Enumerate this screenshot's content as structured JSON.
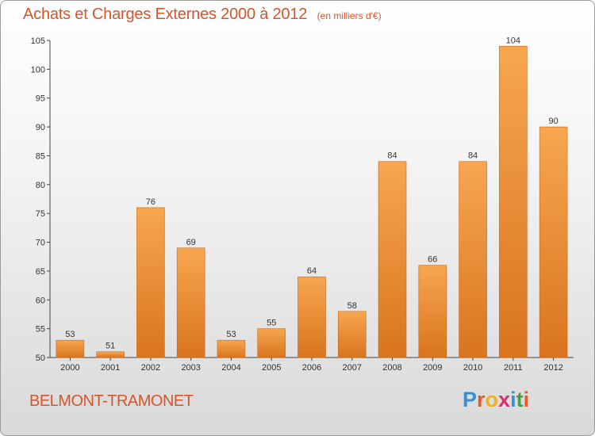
{
  "header": {
    "title": "Achats et Charges Externes 2000 à 2012",
    "subtitle": "(en milliers d'€)"
  },
  "footer": {
    "commune": "BELMONT-TRAMONET",
    "logo_letters": [
      "P",
      "r",
      "o",
      "x",
      "i",
      "t",
      "i"
    ],
    "logo_colors": [
      "#3a8fd6",
      "#e85a2c",
      "#f2b21a",
      "#d6336c",
      "#3a8fd6",
      "#43a047",
      "#e85a2c"
    ]
  },
  "colors": {
    "bar_light": "#f7a650",
    "bar_dark": "#d9741f",
    "title": "#d4562a",
    "grid": "#dddddd"
  },
  "chart_data": {
    "type": "bar",
    "title": "Achats et Charges Externes 2000 à 2012",
    "subtitle": "(en milliers d'€)",
    "categories": [
      "2000",
      "2001",
      "2002",
      "2003",
      "2004",
      "2005",
      "2006",
      "2007",
      "2008",
      "2009",
      "2010",
      "2011",
      "2012"
    ],
    "values": [
      53,
      51,
      76,
      69,
      53,
      55,
      64,
      58,
      84,
      66,
      84,
      104,
      90
    ],
    "data_labels": [
      "53",
      "51",
      "76",
      "69",
      "53",
      "55",
      "64",
      "58",
      "84",
      "66",
      "84",
      "104",
      "90"
    ],
    "ylim": [
      50,
      105
    ],
    "yticks": [
      50,
      55,
      60,
      65,
      70,
      75,
      80,
      85,
      90,
      95,
      100,
      105
    ],
    "grid": false,
    "legend": "none"
  }
}
